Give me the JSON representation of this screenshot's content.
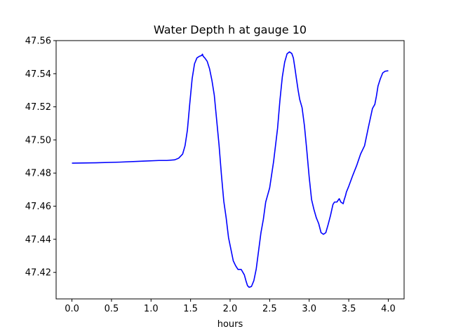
{
  "chart_data": {
    "type": "line",
    "title": "Water Depth h at gauge 10",
    "xlabel": "hours",
    "ylabel": "",
    "xlim": [
      -0.2,
      4.2
    ],
    "ylim": [
      47.404,
      47.56
    ],
    "xticks": [
      0.0,
      0.5,
      1.0,
      1.5,
      2.0,
      2.5,
      3.0,
      3.5,
      4.0
    ],
    "xtick_labels": [
      "0.0",
      "0.5",
      "1.0",
      "1.5",
      "2.0",
      "2.5",
      "3.0",
      "3.5",
      "4.0"
    ],
    "yticks": [
      47.42,
      47.44,
      47.46,
      47.48,
      47.5,
      47.52,
      47.54,
      47.56
    ],
    "ytick_labels": [
      "47.42",
      "47.44",
      "47.46",
      "47.48",
      "47.50",
      "47.52",
      "47.54",
      "47.56"
    ],
    "grid": false,
    "series": [
      {
        "color": "#0000ff",
        "x": [
          0.0,
          0.3,
          0.6,
          0.9,
          1.1,
          1.2,
          1.3,
          1.35,
          1.4,
          1.43,
          1.46,
          1.49,
          1.52,
          1.55,
          1.58,
          1.61,
          1.64,
          1.65,
          1.66,
          1.68,
          1.71,
          1.74,
          1.77,
          1.8,
          1.83,
          1.86,
          1.89,
          1.92,
          1.95,
          1.98,
          2.01,
          2.04,
          2.07,
          2.1,
          2.14,
          2.18,
          2.2,
          2.22,
          2.24,
          2.27,
          2.3,
          2.33,
          2.36,
          2.39,
          2.42,
          2.45,
          2.5,
          2.55,
          2.6,
          2.63,
          2.66,
          2.69,
          2.72,
          2.75,
          2.78,
          2.8,
          2.82,
          2.84,
          2.86,
          2.88,
          2.91,
          2.94,
          2.97,
          3.0,
          3.03,
          3.06,
          3.09,
          3.12,
          3.15,
          3.18,
          3.21,
          3.24,
          3.27,
          3.3,
          3.32,
          3.35,
          3.38,
          3.4,
          3.43,
          3.44,
          3.45,
          3.46,
          3.47,
          3.5,
          3.55,
          3.6,
          3.65,
          3.7,
          3.75,
          3.8,
          3.83,
          3.85,
          3.87,
          3.9,
          3.93,
          3.96,
          4.0
        ],
        "y": [
          47.486,
          47.4862,
          47.4866,
          47.4872,
          47.4876,
          47.4876,
          47.488,
          47.489,
          47.4915,
          47.4965,
          47.506,
          47.522,
          47.537,
          47.546,
          47.5495,
          47.5505,
          47.551,
          47.5518,
          47.5505,
          47.5495,
          47.5475,
          47.543,
          47.536,
          47.527,
          47.512,
          47.497,
          47.479,
          47.463,
          47.453,
          47.441,
          47.434,
          47.427,
          47.424,
          47.4218,
          47.4218,
          47.4185,
          47.415,
          47.412,
          47.411,
          47.4115,
          47.415,
          47.422,
          47.433,
          47.444,
          47.452,
          47.4625,
          47.471,
          47.487,
          47.507,
          47.524,
          47.538,
          47.547,
          47.552,
          47.5532,
          47.5522,
          47.5495,
          47.5432,
          47.5365,
          47.53,
          47.5245,
          47.5195,
          47.5085,
          47.4935,
          47.4775,
          47.464,
          47.458,
          47.453,
          47.4495,
          47.444,
          47.443,
          47.444,
          47.449,
          47.4545,
          47.461,
          47.4625,
          47.4625,
          47.4645,
          47.4625,
          47.4615,
          47.4635,
          47.465,
          47.4665,
          47.4685,
          47.472,
          47.4785,
          47.4845,
          47.4915,
          47.4965,
          47.508,
          47.519,
          47.5215,
          47.5265,
          47.5325,
          47.537,
          47.5405,
          47.5415,
          47.5418
        ]
      }
    ]
  }
}
